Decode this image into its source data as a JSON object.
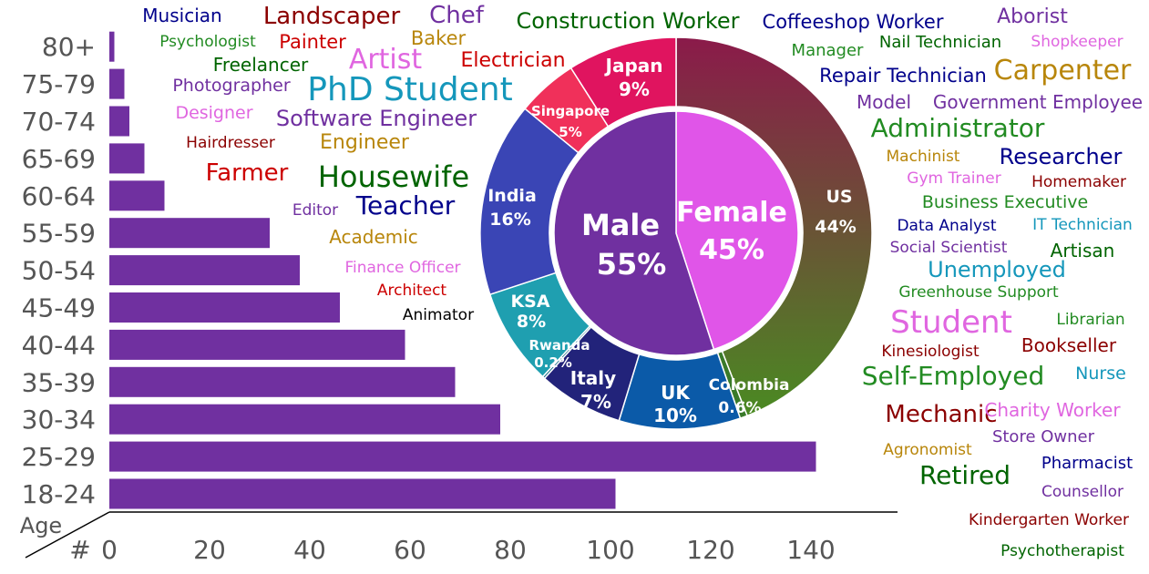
{
  "chart_data": [
    {
      "type": "bar",
      "orientation": "horizontal",
      "ylabel": "Age",
      "xlabel": "#",
      "categories": [
        "18-24",
        "25-29",
        "30-34",
        "35-39",
        "40-44",
        "45-49",
        "50-54",
        "55-59",
        "60-64",
        "65-69",
        "70-74",
        "75-79",
        "80+"
      ],
      "values": [
        101,
        141,
        78,
        69,
        59,
        46,
        38,
        32,
        11,
        7,
        4,
        3,
        1
      ],
      "xlim": [
        0,
        150
      ],
      "xticks": [
        "0",
        "20",
        "40",
        "60",
        "80",
        "100",
        "120",
        "140"
      ],
      "color": "#7030a0",
      "grid": false
    },
    {
      "type": "pie",
      "variant": "donut",
      "name": "country",
      "slices": [
        {
          "label": "US",
          "value_label": "44%",
          "value": 44,
          "color": "#8b2e50"
        },
        {
          "label": "Colombia",
          "value_label": "0.6%",
          "value": 0.6,
          "color": "#3a7a2a"
        },
        {
          "label": "UK",
          "value_label": "10%",
          "value": 10,
          "color": "#0b5aa8"
        },
        {
          "label": "Italy",
          "value_label": "7%",
          "value": 7,
          "color": "#22237a"
        },
        {
          "label": "Rwanda",
          "value_label": "0.2%",
          "value": 0.2,
          "color": "#1a6f8a"
        },
        {
          "label": "KSA",
          "value_label": "8%",
          "value": 8,
          "color": "#1f9fb0"
        },
        {
          "label": "India",
          "value_label": "16%",
          "value": 16,
          "color": "#3a45b5"
        },
        {
          "label": "Singapore",
          "value_label": "5%",
          "value": 5,
          "color": "#f0305a"
        },
        {
          "label": "Japan",
          "value_label": "9%",
          "value": 9,
          "color": "#e0145f"
        }
      ]
    },
    {
      "type": "pie",
      "name": "gender",
      "slices": [
        {
          "label": "Female",
          "value_label": "45%",
          "value": 45,
          "color": "#e055e8"
        },
        {
          "label": "Male",
          "value_label": "55%",
          "value": 55,
          "color": "#7030a0"
        }
      ]
    }
  ],
  "word_cloud": [
    {
      "text": "Musician",
      "color": "#00008b",
      "size": 20
    },
    {
      "text": "Landscaper",
      "color": "#8b0000",
      "size": 26
    },
    {
      "text": "Chef",
      "color": "#7030a0",
      "size": 26
    },
    {
      "text": "Construction Worker",
      "color": "#006400",
      "size": 24
    },
    {
      "text": "Coffeeshop Worker",
      "color": "#00008b",
      "size": 21
    },
    {
      "text": "Aborist",
      "color": "#7030a0",
      "size": 22
    },
    {
      "text": "Psychologist",
      "color": "#228b22",
      "size": 17
    },
    {
      "text": "Painter",
      "color": "#cc0000",
      "size": 21
    },
    {
      "text": "Baker",
      "color": "#b8860b",
      "size": 21
    },
    {
      "text": "Manager",
      "color": "#228b22",
      "size": 18
    },
    {
      "text": "Nail Technician",
      "color": "#006400",
      "size": 18
    },
    {
      "text": "Shopkeeper",
      "color": "#e066e0",
      "size": 17
    },
    {
      "text": "Freelancer",
      "color": "#006400",
      "size": 20
    },
    {
      "text": "Artist",
      "color": "#e066e0",
      "size": 30
    },
    {
      "text": "Electrician",
      "color": "#cc0000",
      "size": 22
    },
    {
      "text": "Carpenter",
      "color": "#b8860b",
      "size": 30
    },
    {
      "text": "Repair Technician",
      "color": "#00008b",
      "size": 21
    },
    {
      "text": "Photographer",
      "color": "#7030a0",
      "size": 19
    },
    {
      "text": "PhD Student",
      "color": "#1597bb",
      "size": 36
    },
    {
      "text": "Model",
      "color": "#7030a0",
      "size": 20
    },
    {
      "text": "Government Employee",
      "color": "#7030a0",
      "size": 20
    },
    {
      "text": "Designer",
      "color": "#e066e0",
      "size": 19
    },
    {
      "text": "Software Engineer",
      "color": "#7030a0",
      "size": 24
    },
    {
      "text": "Administrator",
      "color": "#228b22",
      "size": 28
    },
    {
      "text": "Hairdresser",
      "color": "#8b0000",
      "size": 17
    },
    {
      "text": "Engineer",
      "color": "#b8860b",
      "size": 22
    },
    {
      "text": "Machinist",
      "color": "#b8860b",
      "size": 17
    },
    {
      "text": "Researcher",
      "color": "#00008b",
      "size": 24
    },
    {
      "text": "Gym Trainer",
      "color": "#e066e0",
      "size": 17
    },
    {
      "text": "Homemaker",
      "color": "#8b0000",
      "size": 17
    },
    {
      "text": "Farmer",
      "color": "#cc0000",
      "size": 26
    },
    {
      "text": "Housewife",
      "color": "#006400",
      "size": 32
    },
    {
      "text": "Business Executive",
      "color": "#228b22",
      "size": 19
    },
    {
      "text": "Editor",
      "color": "#7030a0",
      "size": 17
    },
    {
      "text": "Teacher",
      "color": "#00008b",
      "size": 28
    },
    {
      "text": "Data Analyst",
      "color": "#00008b",
      "size": 17
    },
    {
      "text": "IT Technician",
      "color": "#1597bb",
      "size": 17
    },
    {
      "text": "Academic",
      "color": "#b8860b",
      "size": 20
    },
    {
      "text": "Social Scientist",
      "color": "#7030a0",
      "size": 17
    },
    {
      "text": "Artisan",
      "color": "#006400",
      "size": 20
    },
    {
      "text": "Finance Officer",
      "color": "#e066e0",
      "size": 17
    },
    {
      "text": "Unemployed",
      "color": "#1597bb",
      "size": 24
    },
    {
      "text": "Architect",
      "color": "#cc0000",
      "size": 17
    },
    {
      "text": "Greenhouse Support",
      "color": "#228b22",
      "size": 17
    },
    {
      "text": "Animator",
      "color": "#000000",
      "size": 17
    },
    {
      "text": "Student",
      "color": "#e066e0",
      "size": 34
    },
    {
      "text": "Librarian",
      "color": "#228b22",
      "size": 17
    },
    {
      "text": "Kinesiologist",
      "color": "#8b0000",
      "size": 17
    },
    {
      "text": "Bookseller",
      "color": "#8b0000",
      "size": 20
    },
    {
      "text": "Self-Employed",
      "color": "#228b22",
      "size": 28
    },
    {
      "text": "Nurse",
      "color": "#1597bb",
      "size": 19
    },
    {
      "text": "Mechanic",
      "color": "#8b0000",
      "size": 26
    },
    {
      "text": "Charity Worker",
      "color": "#e066e0",
      "size": 20
    },
    {
      "text": "Store Owner",
      "color": "#7030a0",
      "size": 18
    },
    {
      "text": "Agronomist",
      "color": "#b8860b",
      "size": 17
    },
    {
      "text": "Pharmacist",
      "color": "#00008b",
      "size": 18
    },
    {
      "text": "Retired",
      "color": "#006400",
      "size": 28
    },
    {
      "text": "Counsellor",
      "color": "#7030a0",
      "size": 17
    },
    {
      "text": "Kindergarten Worker",
      "color": "#8b0000",
      "size": 17
    },
    {
      "text": "Psychotherapist",
      "color": "#006400",
      "size": 17
    }
  ]
}
